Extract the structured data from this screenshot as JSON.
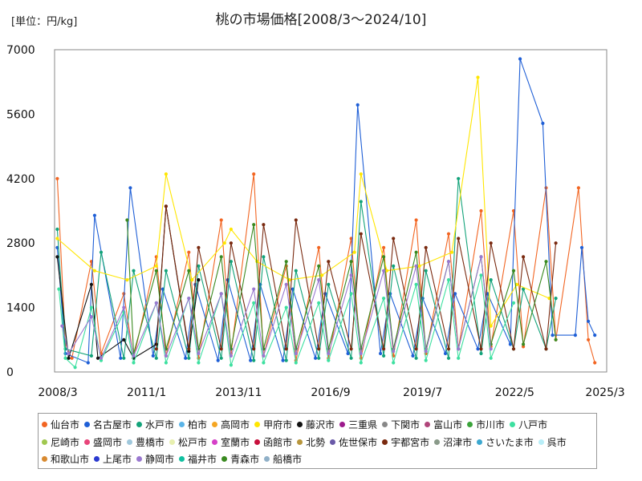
{
  "chart_data": {
    "type": "line",
    "title": "桃の市場価格[2008/3～2024/10]",
    "unit_label": "[単位：円/kg]",
    "ylim": [
      0,
      7000
    ],
    "yticks": [
      0,
      1400,
      2800,
      4200,
      5600,
      7000
    ],
    "xlim": [
      "2008/3",
      "2025/3"
    ],
    "xticks": [
      "2008/3",
      "2011/1",
      "2013/11",
      "2016/9",
      "2019/7",
      "2022/5",
      "2025/3"
    ],
    "grid": true,
    "legend_position": "bottom",
    "legend": [
      {
        "name": "仙台市",
        "color": "#f26522"
      },
      {
        "name": "名古屋市",
        "color": "#1f5fd6"
      },
      {
        "name": "水戸市",
        "color": "#13a37a"
      },
      {
        "name": "柏市",
        "color": "#5ab4e8"
      },
      {
        "name": "高岡市",
        "color": "#f5a623"
      },
      {
        "name": "甲府市",
        "color": "#ffe600"
      },
      {
        "name": "藤沢市",
        "color": "#111111"
      },
      {
        "name": "三重県",
        "color": "#9c1a8c"
      },
      {
        "name": "下関市",
        "color": "#888888"
      },
      {
        "name": "富山市",
        "color": "#b0457a"
      },
      {
        "name": "市川市",
        "color": "#3aa33a"
      },
      {
        "name": "八戸市",
        "color": "#3de0a0"
      },
      {
        "name": "尼崎市",
        "color": "#a0c850"
      },
      {
        "name": "盛岡市",
        "color": "#e8457a"
      },
      {
        "name": "豊橋市",
        "color": "#a0c8dc"
      },
      {
        "name": "松戸市",
        "color": "#e8f0b0"
      },
      {
        "name": "室蘭市",
        "color": "#d640c8"
      },
      {
        "name": "函館市",
        "color": "#c8103c"
      },
      {
        "name": "北勢",
        "color": "#b8963c"
      },
      {
        "name": "佐世保市",
        "color": "#6a5aa8"
      },
      {
        "name": "宇都宮市",
        "color": "#7a2a10"
      },
      {
        "name": "沼津市",
        "color": "#8a9a8a"
      },
      {
        "name": "さいたま市",
        "color": "#3ca8d0"
      },
      {
        "name": "呉市",
        "color": "#b8eef8"
      },
      {
        "name": "和歌山市",
        "color": "#d88a30"
      },
      {
        "name": "上尾市",
        "color": "#2a3ad0"
      },
      {
        "name": "静岡市",
        "color": "#9a78d0"
      },
      {
        "name": "福井市",
        "color": "#10c0a0"
      },
      {
        "name": "青森市",
        "color": "#3a8a20"
      },
      {
        "name": "船橋市",
        "color": "#90b0c8"
      }
    ],
    "series": [
      {
        "name": "仙台市",
        "color": "#f26522",
        "x": [
          2008.25,
          2008.5,
          2008.7,
          2009.3,
          2009.6,
          2010.3,
          2010.6,
          2011.3,
          2011.6,
          2012.3,
          2012.6,
          2013.3,
          2013.6,
          2014.3,
          2014.6,
          2015.3,
          2015.6,
          2016.3,
          2016.6,
          2017.3,
          2017.6,
          2018.3,
          2018.6,
          2019.3,
          2019.6,
          2020.3,
          2020.6,
          2021.3,
          2021.6,
          2022.3,
          2022.6,
          2023.3,
          2023.6,
          2024.3,
          2024.6,
          2024.8
        ],
        "y": [
          4200,
          600,
          300,
          2400,
          400,
          1700,
          300,
          2500,
          350,
          2600,
          300,
          3300,
          400,
          4300,
          350,
          2300,
          250,
          2700,
          300,
          2900,
          300,
          2700,
          350,
          3300,
          400,
          3000,
          500,
          3500,
          550,
          3500,
          550,
          4000,
          700,
          4000,
          700,
          200
        ]
      },
      {
        "name": "名古屋市",
        "color": "#1f5fd6",
        "x": [
          2008.25,
          2008.5,
          2009.2,
          2009.4,
          2010.2,
          2010.5,
          2011.2,
          2011.5,
          2012.2,
          2012.5,
          2013.2,
          2013.5,
          2014.2,
          2014.5,
          2015.2,
          2015.5,
          2016.2,
          2016.5,
          2017.2,
          2017.5,
          2018.2,
          2018.5,
          2019.2,
          2019.5,
          2020.2,
          2020.5,
          2021.2,
          2021.5,
          2022.2,
          2022.5,
          2023.2,
          2023.5,
          2024.2,
          2024.4,
          2024.6,
          2024.8
        ],
        "y": [
          2700,
          400,
          200,
          3400,
          300,
          4000,
          350,
          1800,
          300,
          1900,
          250,
          2000,
          250,
          1900,
          250,
          1800,
          300,
          1700,
          400,
          5800,
          400,
          1700,
          350,
          1600,
          400,
          1700,
          500,
          1700,
          600,
          6800,
          5400,
          800,
          800,
          2700,
          1100,
          800
        ]
      },
      {
        "name": "水戸市",
        "color": "#13a37a",
        "x": [
          2008.25,
          2008.5,
          2009.3,
          2009.6,
          2010.3,
          2010.6,
          2011.3,
          2011.6,
          2012.3,
          2012.6,
          2013.3,
          2013.6,
          2014.3,
          2014.6,
          2015.3,
          2015.6,
          2016.3,
          2016.6,
          2017.3,
          2017.6,
          2018.3,
          2018.6,
          2019.3,
          2019.6,
          2020.3,
          2020.6,
          2021.3,
          2021.6,
          2022.3,
          2022.6,
          2023.3,
          2023.6
        ],
        "y": [
          3100,
          500,
          350,
          2600,
          300,
          2200,
          300,
          2200,
          300,
          2300,
          300,
          2400,
          250,
          2500,
          250,
          2200,
          300,
          1900,
          300,
          3700,
          350,
          2300,
          300,
          2200,
          300,
          4200,
          400,
          2000,
          500,
          1800,
          500,
          1600
        ]
      },
      {
        "name": "甲府市",
        "color": "#ffe600",
        "x": [
          2008.25,
          2009.4,
          2010.4,
          2011.3,
          2011.6,
          2012.4,
          2013.4,
          2013.6,
          2014.4,
          2015.4,
          2016.4,
          2017.4,
          2017.6,
          2018.4,
          2019.4,
          2020.4,
          2021.2,
          2021.6,
          2022.4,
          2023.4
        ],
        "y": [
          2900,
          2200,
          2000,
          2300,
          4300,
          2000,
          2800,
          3100,
          2400,
          2000,
          2100,
          2600,
          4300,
          2200,
          2300,
          2600,
          6400,
          1000,
          1900,
          1600
        ]
      },
      {
        "name": "藤沢市",
        "color": "#111111",
        "x": [
          2008.25,
          2008.6,
          2009.3,
          2009.5,
          2010.3,
          2010.6,
          2011.3,
          2011.6,
          2012.3,
          2012.6
        ],
        "y": [
          2500,
          300,
          1900,
          300,
          700,
          300,
          600,
          3600,
          450,
          2000
        ]
      },
      {
        "name": "宇都宮市",
        "color": "#7a2a10",
        "x": [
          2011.3,
          2011.6,
          2012.3,
          2012.6,
          2013.3,
          2013.6,
          2014.3,
          2014.6,
          2015.3,
          2015.6,
          2016.3,
          2016.6,
          2017.3,
          2017.6,
          2018.3,
          2018.6,
          2019.3,
          2019.6,
          2020.3,
          2020.6,
          2021.3,
          2021.6,
          2022.3,
          2022.6,
          2023.3,
          2023.6
        ],
        "y": [
          500,
          3600,
          500,
          2700,
          500,
          2800,
          500,
          3200,
          500,
          3300,
          500,
          2400,
          500,
          3000,
          500,
          2900,
          500,
          2700,
          500,
          2900,
          500,
          2800,
          500,
          2500,
          500,
          2800
        ]
      },
      {
        "name": "青森市",
        "color": "#3a8a20",
        "x": [
          2010.4,
          2010.6,
          2011.3,
          2011.6,
          2012.3,
          2012.6,
          2013.3,
          2013.6,
          2014.3,
          2014.6,
          2015.3,
          2015.6,
          2016.3,
          2016.6,
          2017.3,
          2017.6,
          2018.3,
          2018.6,
          2019.3,
          2019.6,
          2020.3,
          2020.6,
          2021.3,
          2021.6,
          2022.3,
          2022.6,
          2023.3,
          2023.6
        ],
        "y": [
          3300,
          400,
          2200,
          500,
          2200,
          500,
          2500,
          500,
          3200,
          500,
          2400,
          500,
          2300,
          500,
          2400,
          500,
          2500,
          500,
          2600,
          500,
          2400,
          500,
          2500,
          600,
          2200,
          600,
          2400,
          700
        ]
      },
      {
        "name": "八戸市",
        "color": "#3de0a0",
        "x": [
          2008.3,
          2008.5,
          2008.8,
          2009.3,
          2009.6,
          2010.3,
          2010.6,
          2011.3,
          2011.6,
          2012.3,
          2012.6,
          2013.3,
          2013.6,
          2014.3,
          2014.6,
          2015.3,
          2015.6,
          2016.3,
          2016.6,
          2017.3,
          2017.6,
          2018.3,
          2018.6,
          2019.3,
          2019.6,
          2020.3,
          2020.6,
          2021.3,
          2021.6,
          2022.3
        ],
        "y": [
          1800,
          300,
          100,
          1400,
          250,
          1300,
          200,
          1500,
          200,
          1600,
          200,
          1700,
          150,
          1500,
          200,
          1400,
          200,
          1500,
          250,
          1700,
          200,
          1600,
          200,
          1900,
          250,
          2000,
          300,
          2100,
          300,
          1500
        ]
      },
      {
        "name": "静岡市",
        "color": "#9a78d0",
        "x": [
          2008.4,
          2008.6,
          2009.3,
          2009.6,
          2010.3,
          2010.6,
          2011.3,
          2011.6,
          2012.3,
          2012.6,
          2013.3,
          2013.6,
          2014.3,
          2014.6,
          2015.3,
          2015.6,
          2016.3,
          2016.6,
          2017.3,
          2017.6,
          2018.3,
          2018.6,
          2019.3,
          2019.6,
          2020.3,
          2020.6,
          2021.3,
          2021.6
        ],
        "y": [
          1000,
          400,
          1200,
          300,
          1400,
          350,
          1500,
          350,
          1600,
          400,
          1700,
          350,
          1800,
          350,
          1900,
          400,
          2000,
          400,
          2100,
          400,
          2200,
          450,
          2300,
          450,
          2400,
          500,
          2500,
          500
        ]
      }
    ]
  }
}
